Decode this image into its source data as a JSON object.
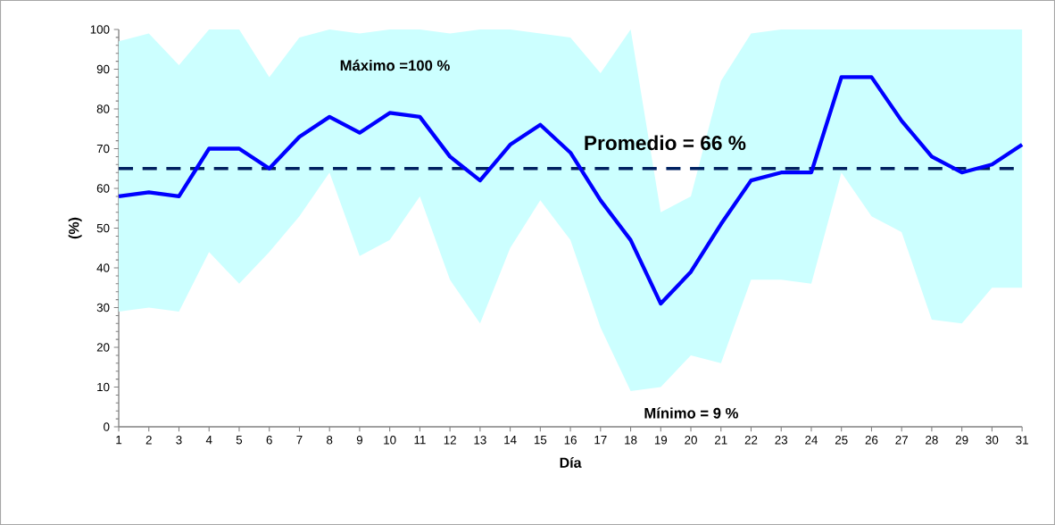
{
  "chart_data": {
    "type": "line",
    "xlabel": "Día",
    "ylabel": "(%)",
    "x": [
      1,
      2,
      3,
      4,
      5,
      6,
      7,
      8,
      9,
      10,
      11,
      12,
      13,
      14,
      15,
      16,
      17,
      18,
      19,
      20,
      21,
      22,
      23,
      24,
      25,
      26,
      27,
      28,
      29,
      30,
      31
    ],
    "series": [
      {
        "color": "#0000ff",
        "values": [
          58,
          59,
          58,
          70,
          70,
          65,
          73,
          78,
          74,
          79,
          78,
          68,
          62,
          71,
          76,
          69,
          57,
          47,
          31,
          39,
          51,
          62,
          64,
          64,
          88,
          88,
          77,
          68,
          64,
          66,
          71
        ],
        "upper": [
          97,
          99,
          91,
          100,
          100,
          88,
          98,
          100,
          99,
          100,
          100,
          99,
          100,
          100,
          99,
          98,
          89,
          100,
          54,
          58,
          87,
          99,
          100,
          100,
          100,
          100,
          100,
          100,
          100,
          100,
          100
        ],
        "lower": [
          29,
          30,
          29,
          44,
          36,
          44,
          53,
          64,
          43,
          47,
          58,
          37,
          26,
          45,
          57,
          47,
          25,
          9,
          10,
          18,
          16,
          37,
          37,
          36,
          64,
          53,
          49,
          27,
          26,
          35,
          35
        ]
      }
    ],
    "ref_lines": [
      {
        "axis": "y",
        "value": 65,
        "color": "#002060",
        "line_style": "dashed"
      }
    ],
    "annotations": [
      "Máximo =100  %",
      "Mínimo = 9 %",
      "Promedio = 66 %"
    ],
    "xlim": [
      1,
      31
    ],
    "ylim": [
      0,
      100
    ],
    "xticks": [
      1,
      2,
      3,
      4,
      5,
      6,
      7,
      8,
      9,
      10,
      11,
      12,
      13,
      14,
      15,
      16,
      17,
      18,
      19,
      20,
      21,
      22,
      23,
      24,
      25,
      26,
      27,
      28,
      29,
      30,
      31
    ],
    "yticks": [
      0,
      10,
      20,
      30,
      40,
      50,
      60,
      70,
      80,
      90,
      100
    ],
    "grid": false,
    "marker": "none",
    "line_style": "solid"
  }
}
